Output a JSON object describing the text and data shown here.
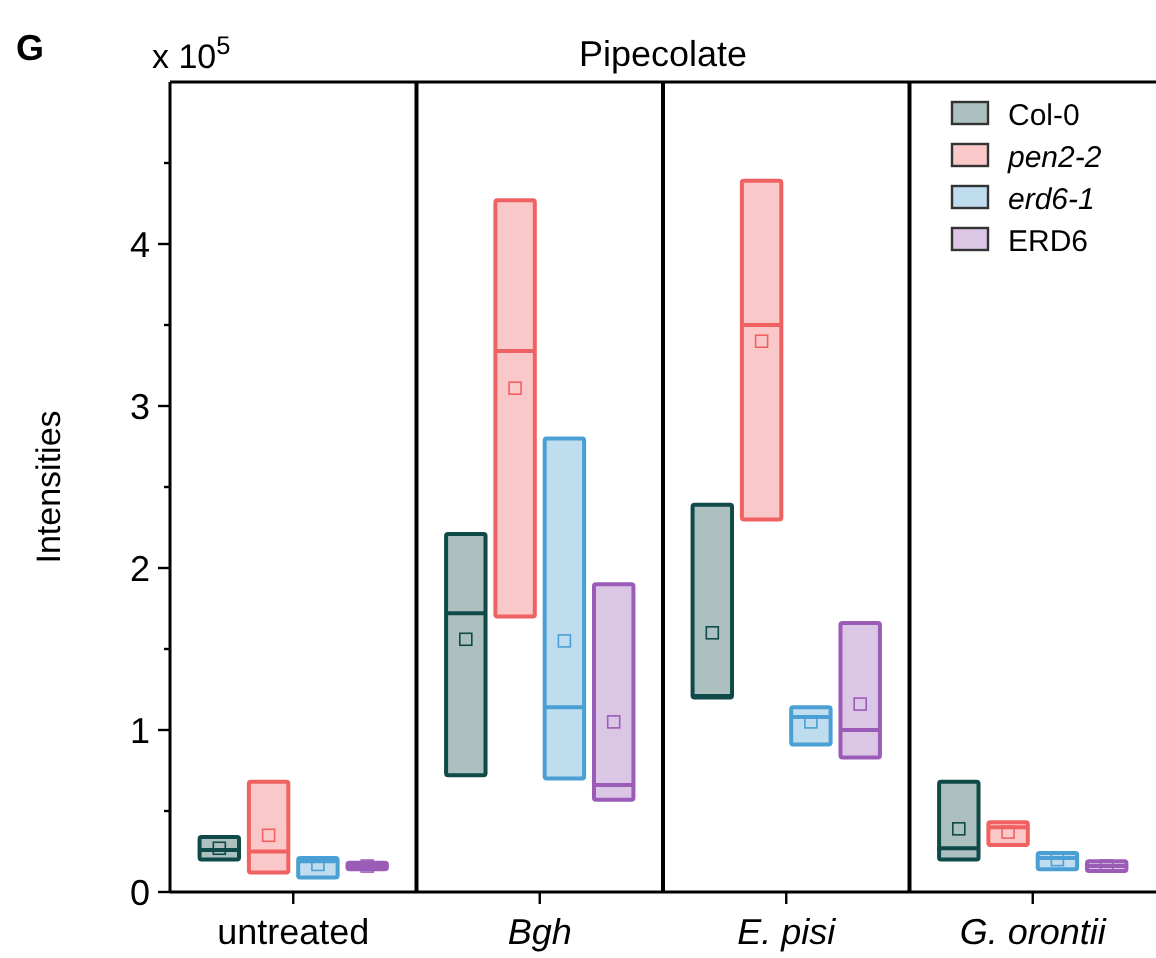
{
  "chart_data": {
    "type": "box",
    "title": "Pipecolate",
    "ylabel": "Intensities",
    "annotations": [
      "G",
      "x 10$^{5}$"
    ],
    "categories": [
      "untreated",
      "Bgh",
      "E. pisi",
      "G. orontii"
    ],
    "ylim": [
      0,
      5
    ],
    "yticks": [
      0,
      {
        "value": 0.5,
        "label": null
      },
      1,
      {
        "value": 1.5,
        "label": null
      },
      2,
      {
        "value": 2.5,
        "label": null
      },
      3,
      {
        "value": 3.5,
        "label": null
      },
      4,
      {
        "value": 4.5,
        "label": null
      }
    ],
    "legend": "top right",
    "grid": false,
    "series": [
      {
        "name": "Col-0",
        "color": "#0f4a48",
        "boxes": [
          {
            "low": 0.2,
            "q1": 0.2,
            "median": 0.26,
            "q3": 0.34,
            "high": 0.34,
            "mean": 0.27
          },
          {
            "low": 0.72,
            "q1": 0.72,
            "median": 1.72,
            "q3": 2.21,
            "high": 2.21,
            "mean": 1.56
          },
          {
            "low": 1.2,
            "q1": 1.2,
            "median": 1.21,
            "q3": 2.39,
            "high": 2.39,
            "mean": 1.6
          },
          {
            "low": 0.2,
            "q1": 0.2,
            "median": 0.27,
            "q3": 0.68,
            "high": 0.68,
            "mean": 0.39
          }
        ]
      },
      {
        "name": "pen2-2",
        "color": "#f06262",
        "boxes": [
          {
            "low": 0.12,
            "q1": 0.12,
            "median": 0.25,
            "q3": 0.68,
            "high": 0.68,
            "mean": 0.35
          },
          {
            "low": 1.7,
            "q1": 1.7,
            "median": 3.34,
            "q3": 4.27,
            "high": 4.27,
            "mean": 3.11
          },
          {
            "low": 2.3,
            "q1": 2.3,
            "median": 3.5,
            "q3": 4.39,
            "high": 4.39,
            "mean": 3.4
          },
          {
            "low": 0.29,
            "q1": 0.29,
            "median": 0.4,
            "q3": 0.43,
            "high": 0.43,
            "mean": 0.37
          }
        ]
      },
      {
        "name": "erd6-1",
        "color": "#4a9fd4",
        "boxes": [
          {
            "low": 0.09,
            "q1": 0.09,
            "median": 0.19,
            "q3": 0.21,
            "high": 0.21,
            "mean": 0.17
          },
          {
            "low": 0.7,
            "q1": 0.7,
            "median": 1.14,
            "q3": 2.8,
            "high": 2.8,
            "mean": 1.55
          },
          {
            "low": 0.91,
            "q1": 0.91,
            "median": 1.08,
            "q3": 1.14,
            "high": 1.14,
            "mean": 1.05
          },
          {
            "low": 0.14,
            "q1": 0.14,
            "median": 0.21,
            "q3": 0.24,
            "high": 0.24,
            "mean": 0.2
          }
        ]
      },
      {
        "name": "ERD6",
        "color": "#9b5cb8",
        "boxes": [
          {
            "low": 0.14,
            "q1": 0.14,
            "median": 0.16,
            "q3": 0.18,
            "high": 0.18,
            "mean": 0.16
          },
          {
            "low": 0.57,
            "q1": 0.57,
            "median": 0.66,
            "q3": 1.9,
            "high": 1.9,
            "mean": 1.05
          },
          {
            "low": 0.83,
            "q1": 0.83,
            "median": 1.0,
            "q3": 1.66,
            "high": 1.66,
            "mean": 1.16
          },
          {
            "low": 0.13,
            "q1": 0.13,
            "median": 0.16,
            "q3": 0.19,
            "high": 0.19,
            "mean": 0.16
          }
        ]
      }
    ]
  }
}
